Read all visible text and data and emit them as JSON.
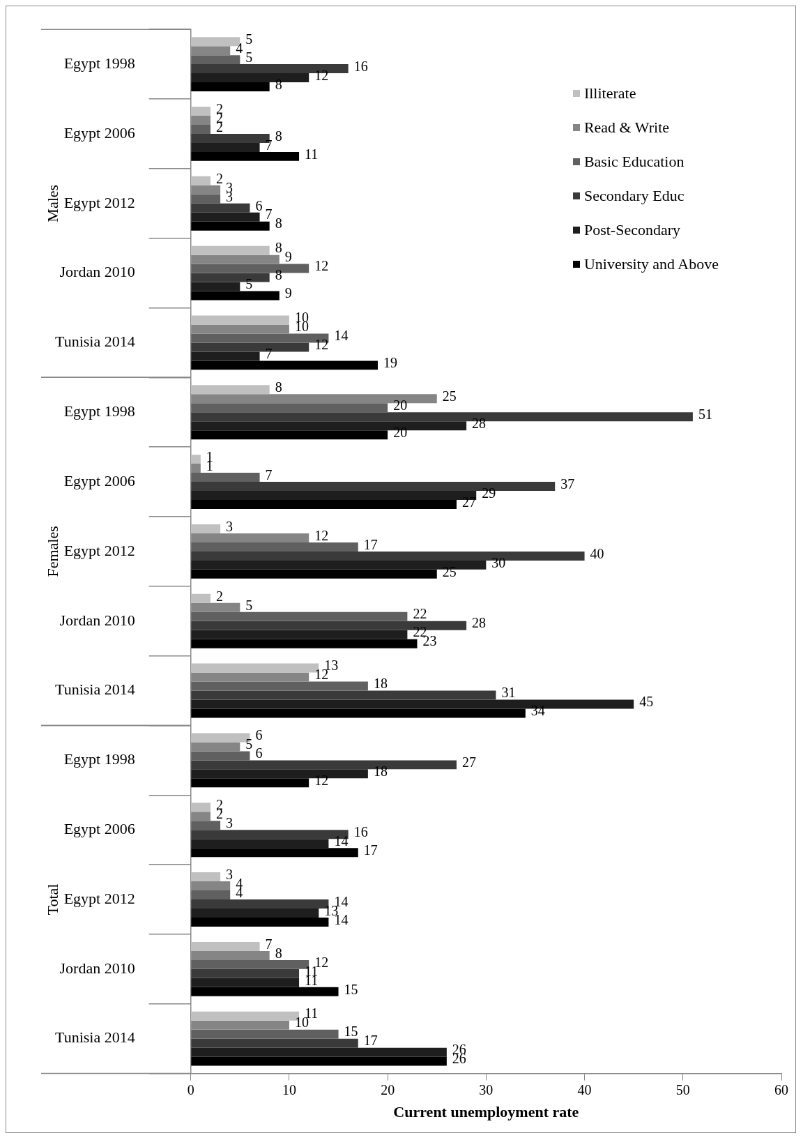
{
  "chart_data": {
    "type": "bar",
    "orientation": "horizontal",
    "xlabel": "Current unemployment rate",
    "categories": [
      "Egypt 1998",
      "Egypt 2006",
      "Egypt 2012",
      "Jordan 2010",
      "Tunisia 2014",
      "Egypt 1998",
      "Egypt 2006",
      "Egypt 2012",
      "Jordan 2010",
      "Tunisia 2014",
      "Egypt 1998",
      "Egypt 2006",
      "Egypt 2012",
      "Jordan 2010",
      "Tunisia 2014"
    ],
    "series": [
      {
        "name": "Illiterate",
        "color": "#c0c0c0",
        "values": [
          5,
          2,
          2,
          8,
          10,
          8,
          1,
          3,
          2,
          13,
          6,
          2,
          3,
          7,
          11
        ]
      },
      {
        "name": "Read & Write",
        "color": "#858585",
        "values": [
          4,
          2,
          3,
          9,
          10,
          25,
          1,
          12,
          5,
          12,
          5,
          2,
          4,
          8,
          10
        ]
      },
      {
        "name": "Basic Education",
        "color": "#606060",
        "values": [
          5,
          2,
          3,
          12,
          14,
          20,
          7,
          17,
          22,
          18,
          6,
          3,
          4,
          12,
          15
        ]
      },
      {
        "name": "Secondary Educ",
        "color": "#3a3a3a",
        "values": [
          16,
          8,
          6,
          8,
          12,
          51,
          37,
          40,
          28,
          31,
          27,
          16,
          14,
          11,
          17
        ]
      },
      {
        "name": "Post-Secondary",
        "color": "#1e1e1e",
        "values": [
          12,
          7,
          7,
          5,
          7,
          28,
          29,
          30,
          22,
          45,
          18,
          14,
          13,
          11,
          26
        ]
      },
      {
        "name": "University and Above",
        "color": "#000000",
        "values": [
          8,
          11,
          8,
          9,
          19,
          20,
          27,
          25,
          23,
          34,
          12,
          17,
          14,
          15,
          26
        ]
      }
    ],
    "xlim": [
      0,
      60
    ],
    "xticks": [
      0,
      10,
      20,
      30,
      40,
      50,
      60
    ],
    "grid": false,
    "legend": "top right",
    "data_labels": true,
    "annotations": [
      "Males",
      "Females",
      "Total"
    ]
  }
}
